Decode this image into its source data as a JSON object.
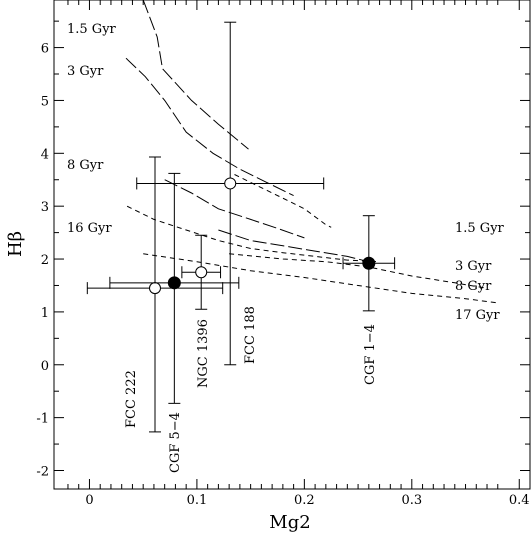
{
  "chart_data": {
    "type": "scatter",
    "xlabel": "Mg2",
    "ylabel": "Hβ",
    "xlim": [
      -0.033,
      0.41
    ],
    "ylim": [
      -2.35,
      6.9
    ],
    "xticks": [
      "0",
      "0.1",
      "0.2",
      "0.3",
      "0.4"
    ],
    "yticks": [
      "-2",
      "-1",
      "0",
      "1",
      "2",
      "3",
      "4",
      "5",
      "6"
    ],
    "age_labels_left": [
      "1.5 Gyr",
      "3 Gyr",
      "8 Gyr",
      "16 Gyr"
    ],
    "age_labels_right": [
      "1.5 Gyr",
      "3 Gyr",
      "8 Gyr",
      "17 Gyr"
    ],
    "model_tracks_long_dash": [
      {
        "points": [
          [
            0.05,
            6.9
          ],
          [
            0.063,
            6.2
          ],
          [
            0.068,
            5.6
          ],
          [
            0.095,
            5.0
          ],
          [
            0.12,
            4.55
          ],
          [
            0.148,
            4.08
          ]
        ]
      },
      {
        "points": [
          [
            0.034,
            5.8
          ],
          [
            0.052,
            5.45
          ],
          [
            0.07,
            5.0
          ],
          [
            0.09,
            4.4
          ],
          [
            0.115,
            4.0
          ],
          [
            0.14,
            3.7
          ],
          [
            0.165,
            3.45
          ],
          [
            0.19,
            3.2
          ]
        ]
      },
      {
        "points": [
          [
            0.07,
            3.5
          ],
          [
            0.095,
            3.25
          ],
          [
            0.12,
            2.95
          ],
          [
            0.15,
            2.75
          ],
          [
            0.175,
            2.58
          ],
          [
            0.2,
            2.4
          ]
        ]
      },
      {
        "points": [
          [
            0.12,
            2.55
          ],
          [
            0.15,
            2.35
          ],
          [
            0.18,
            2.25
          ],
          [
            0.21,
            2.15
          ],
          [
            0.24,
            2.05
          ],
          [
            0.26,
            1.95
          ]
        ]
      }
    ],
    "model_tracks_short_dash": [
      {
        "points": [
          [
            0.135,
            3.6
          ],
          [
            0.16,
            3.35
          ],
          [
            0.18,
            3.15
          ],
          [
            0.2,
            2.95
          ],
          [
            0.22,
            2.65
          ],
          [
            0.225,
            2.6
          ]
        ]
      },
      {
        "points": [
          [
            0.035,
            3.0
          ],
          [
            0.06,
            2.75
          ],
          [
            0.09,
            2.55
          ],
          [
            0.12,
            2.35
          ],
          [
            0.15,
            2.2
          ],
          [
            0.18,
            2.12
          ],
          [
            0.21,
            2.05
          ],
          [
            0.24,
            1.98
          ],
          [
            0.27,
            1.95
          ]
        ]
      },
      {
        "points": [
          [
            0.13,
            2.1
          ],
          [
            0.18,
            2.0
          ],
          [
            0.22,
            1.95
          ],
          [
            0.26,
            1.85
          ],
          [
            0.3,
            1.68
          ],
          [
            0.34,
            1.55
          ],
          [
            0.36,
            1.48
          ],
          [
            0.37,
            1.45
          ]
        ]
      },
      {
        "points": [
          [
            0.05,
            2.1
          ],
          [
            0.1,
            1.95
          ],
          [
            0.15,
            1.78
          ],
          [
            0.2,
            1.65
          ],
          [
            0.25,
            1.5
          ],
          [
            0.3,
            1.35
          ],
          [
            0.35,
            1.25
          ],
          [
            0.38,
            1.17
          ]
        ]
      }
    ],
    "galaxies": [
      {
        "name": "FCC 222",
        "x": 0.061,
        "y": 1.45,
        "xerr_lo": 0.063,
        "xerr_hi": 0.063,
        "yerr_lo": 2.72,
        "yerr_hi": 2.48,
        "filled": false
      },
      {
        "name": "CGF 5−4",
        "x": 0.079,
        "y": 1.55,
        "xerr_lo": 0.06,
        "xerr_hi": 0.06,
        "yerr_lo": 2.28,
        "yerr_hi": 2.07,
        "filled": true
      },
      {
        "name": "NGC 1396",
        "x": 0.104,
        "y": 1.75,
        "xerr_lo": 0.018,
        "xerr_hi": 0.018,
        "yerr_lo": 0.7,
        "yerr_hi": 0.7,
        "filled": false
      },
      {
        "name": "FCC 188",
        "x": 0.131,
        "y": 3.43,
        "xerr_lo": 0.087,
        "xerr_hi": 0.087,
        "yerr_lo": 3.43,
        "yerr_hi": 3.05,
        "filled": false
      },
      {
        "name": "CGF 1−4",
        "x": 0.26,
        "y": 1.92,
        "xerr_lo": 0.024,
        "xerr_hi": 0.024,
        "yerr_lo": 0.9,
        "yerr_hi": 0.9,
        "filled": true
      }
    ]
  }
}
